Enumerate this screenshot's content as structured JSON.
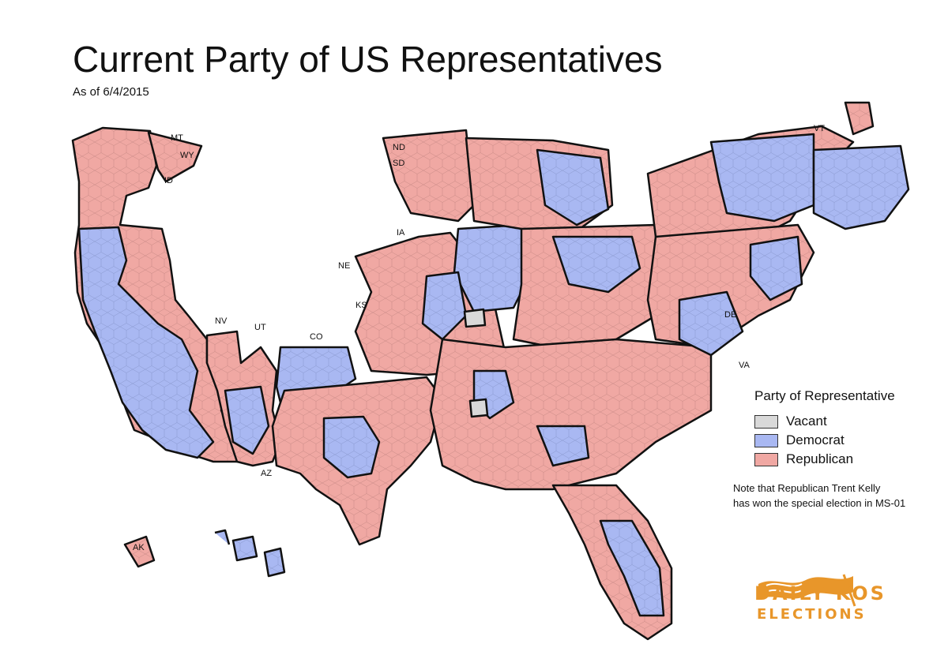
{
  "header": {
    "title": "Current Party of US Representatives",
    "subtitle": "As of 6/4/2015"
  },
  "legend": {
    "title": "Party of Representative",
    "items": [
      {
        "label": "Vacant",
        "color": "#d9d9d9"
      },
      {
        "label": "Democrat",
        "color": "#a9b8f2"
      },
      {
        "label": "Republican",
        "color": "#f0a8a3"
      }
    ]
  },
  "note": {
    "line1": "Note that Republican Trent Kelly",
    "line2": "has won the special election in MS-01"
  },
  "logo": {
    "line1": "DAILY KOS",
    "line2": "ELECTIONS"
  },
  "state_labels": [
    "MT",
    "WY",
    "ID",
    "ND",
    "SD",
    "IA",
    "NE",
    "KS",
    "NV",
    "UT",
    "CO",
    "DE",
    "VA",
    "VT",
    "AZ",
    "AK"
  ],
  "vacant_districts": [
    "IL-18",
    "MS-01"
  ],
  "colors": {
    "democrat": "#a9b8f2",
    "republican": "#f0a8a3",
    "vacant": "#d9d9d9",
    "border": "#111111"
  }
}
